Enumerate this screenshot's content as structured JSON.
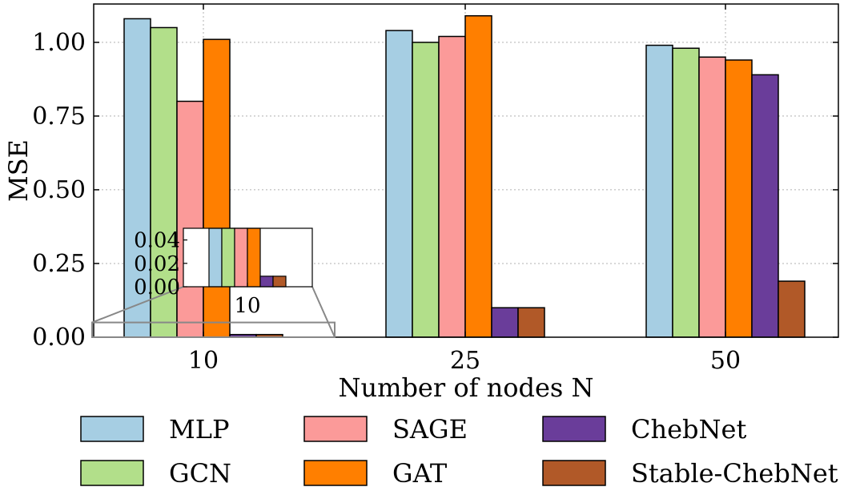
{
  "chart_data": {
    "type": "bar",
    "categories": [
      "10",
      "25",
      "50"
    ],
    "xlabel": "Number of nodes N",
    "ylabel": "MSE",
    "ylim": [
      0,
      1.13
    ],
    "yticks": [
      "0.00",
      "0.25",
      "0.50",
      "0.75",
      "1.00"
    ],
    "grid": true,
    "legend_position": "bottom",
    "series": [
      {
        "name": "MLP",
        "color": "#a6cee3",
        "values": [
          1.08,
          1.04,
          0.99
        ]
      },
      {
        "name": "GCN",
        "color": "#b2df8a",
        "values": [
          1.05,
          1.0,
          0.98
        ]
      },
      {
        "name": "SAGE",
        "color": "#fb9a99",
        "values": [
          0.8,
          1.02,
          0.95
        ]
      },
      {
        "name": "GAT",
        "color": "#ff7f00",
        "values": [
          1.01,
          1.09,
          0.94
        ]
      },
      {
        "name": "ChebNet",
        "color": "#6a3d9a",
        "values": [
          0.009,
          0.1,
          0.89
        ]
      },
      {
        "name": "Stable-ChebNet",
        "color": "#b15928",
        "values": [
          0.009,
          0.1,
          0.19
        ]
      }
    ],
    "inset": {
      "category": "10",
      "yticks": [
        "0.00",
        "0.02",
        "0.04"
      ],
      "ylim": [
        0,
        0.05
      ]
    }
  }
}
